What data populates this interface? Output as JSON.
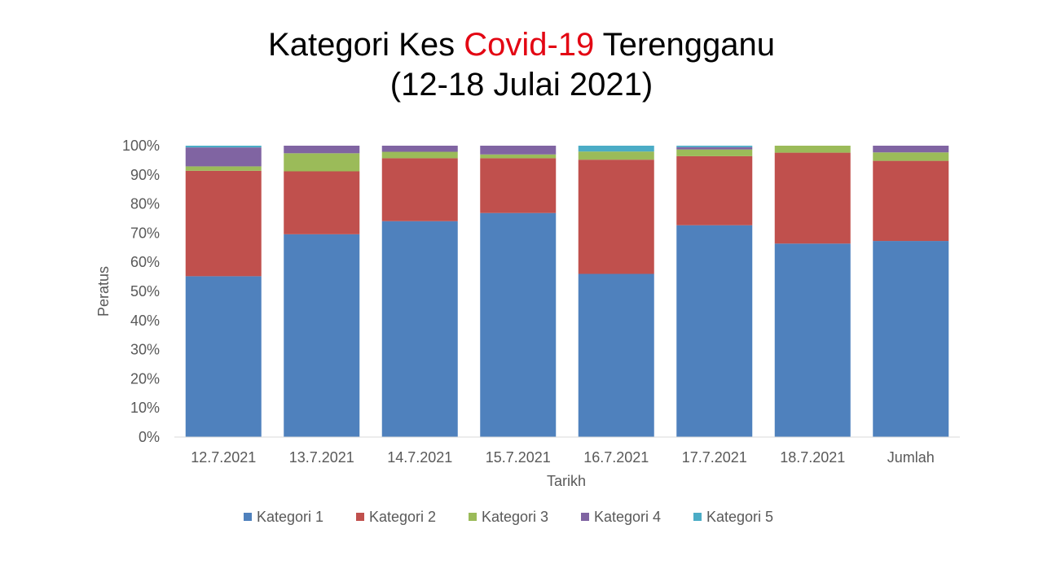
{
  "title": {
    "part1": "Kategori Kes ",
    "highlight": "Covid-19",
    "part2": " Terengganu",
    "line2": "(12-18 Julai 2021)",
    "highlight_color": "#e30613"
  },
  "chart_data": {
    "type": "bar",
    "stacked": true,
    "percent_stacked": true,
    "xlabel": "Tarikh",
    "ylabel": "Peratus",
    "ylim": [
      0,
      100
    ],
    "yticks": [
      "0%",
      "10%",
      "20%",
      "30%",
      "40%",
      "50%",
      "60%",
      "70%",
      "80%",
      "90%",
      "100%"
    ],
    "grid": false,
    "legend_position": "bottom",
    "categories": [
      "12.7.2021",
      "13.7.2021",
      "14.7.2021",
      "15.7.2021",
      "16.7.2021",
      "17.7.2021",
      "18.7.2021",
      "Jumlah"
    ],
    "series": [
      {
        "name": "Kategori 1",
        "color": "#4f81bd",
        "values": [
          55.2,
          69.6,
          74.1,
          76.9,
          56.0,
          72.7,
          66.4,
          67.3
        ]
      },
      {
        "name": "Kategori 2",
        "color": "#c0504d",
        "values": [
          36.2,
          21.6,
          21.6,
          18.8,
          39.2,
          23.7,
          31.2,
          27.5
        ]
      },
      {
        "name": "Kategori 3",
        "color": "#9bbb59",
        "values": [
          1.5,
          6.2,
          2.2,
          1.3,
          2.8,
          2.3,
          2.4,
          2.9
        ]
      },
      {
        "name": "Kategori 4",
        "color": "#8064a2",
        "values": [
          6.5,
          2.6,
          2.1,
          3.0,
          0.0,
          0.8,
          0.0,
          2.3
        ]
      },
      {
        "name": "Kategori 5",
        "color": "#4bacc6",
        "values": [
          0.6,
          0.0,
          0.0,
          0.0,
          2.0,
          0.5,
          0.0,
          0.0
        ]
      }
    ]
  }
}
